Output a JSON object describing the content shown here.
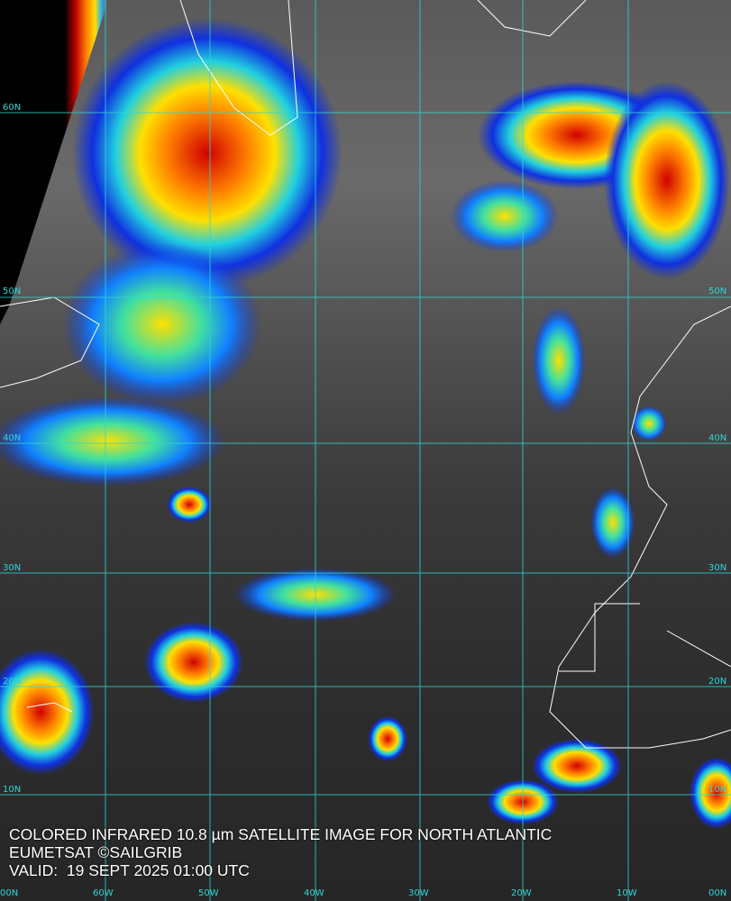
{
  "map": {
    "lat_labels_left": [
      "60N",
      "50N",
      "40N",
      "30N",
      "20N",
      "10N"
    ],
    "lat_labels_right": [
      "50N",
      "40N",
      "30N",
      "20N",
      "10N"
    ],
    "lon_labels": [
      "00N",
      "60W",
      "50W",
      "40W",
      "30W",
      "20W",
      "10W",
      "00N"
    ],
    "colors": {
      "grid": "#2fd6d6",
      "coast": "#ffffff",
      "cold_top": "#e00000",
      "mid_top": "#ffe000",
      "warm_top": "#1030e0"
    }
  },
  "caption": {
    "line1": "COLORED INFRARED 10.8 µm SATELLITE IMAGE FOR NORTH ATLANTIC",
    "line2": "EUMETSAT ©SAILGRIB",
    "line3": "VALID:  19 SEPT 2025 01:00 UTC"
  }
}
